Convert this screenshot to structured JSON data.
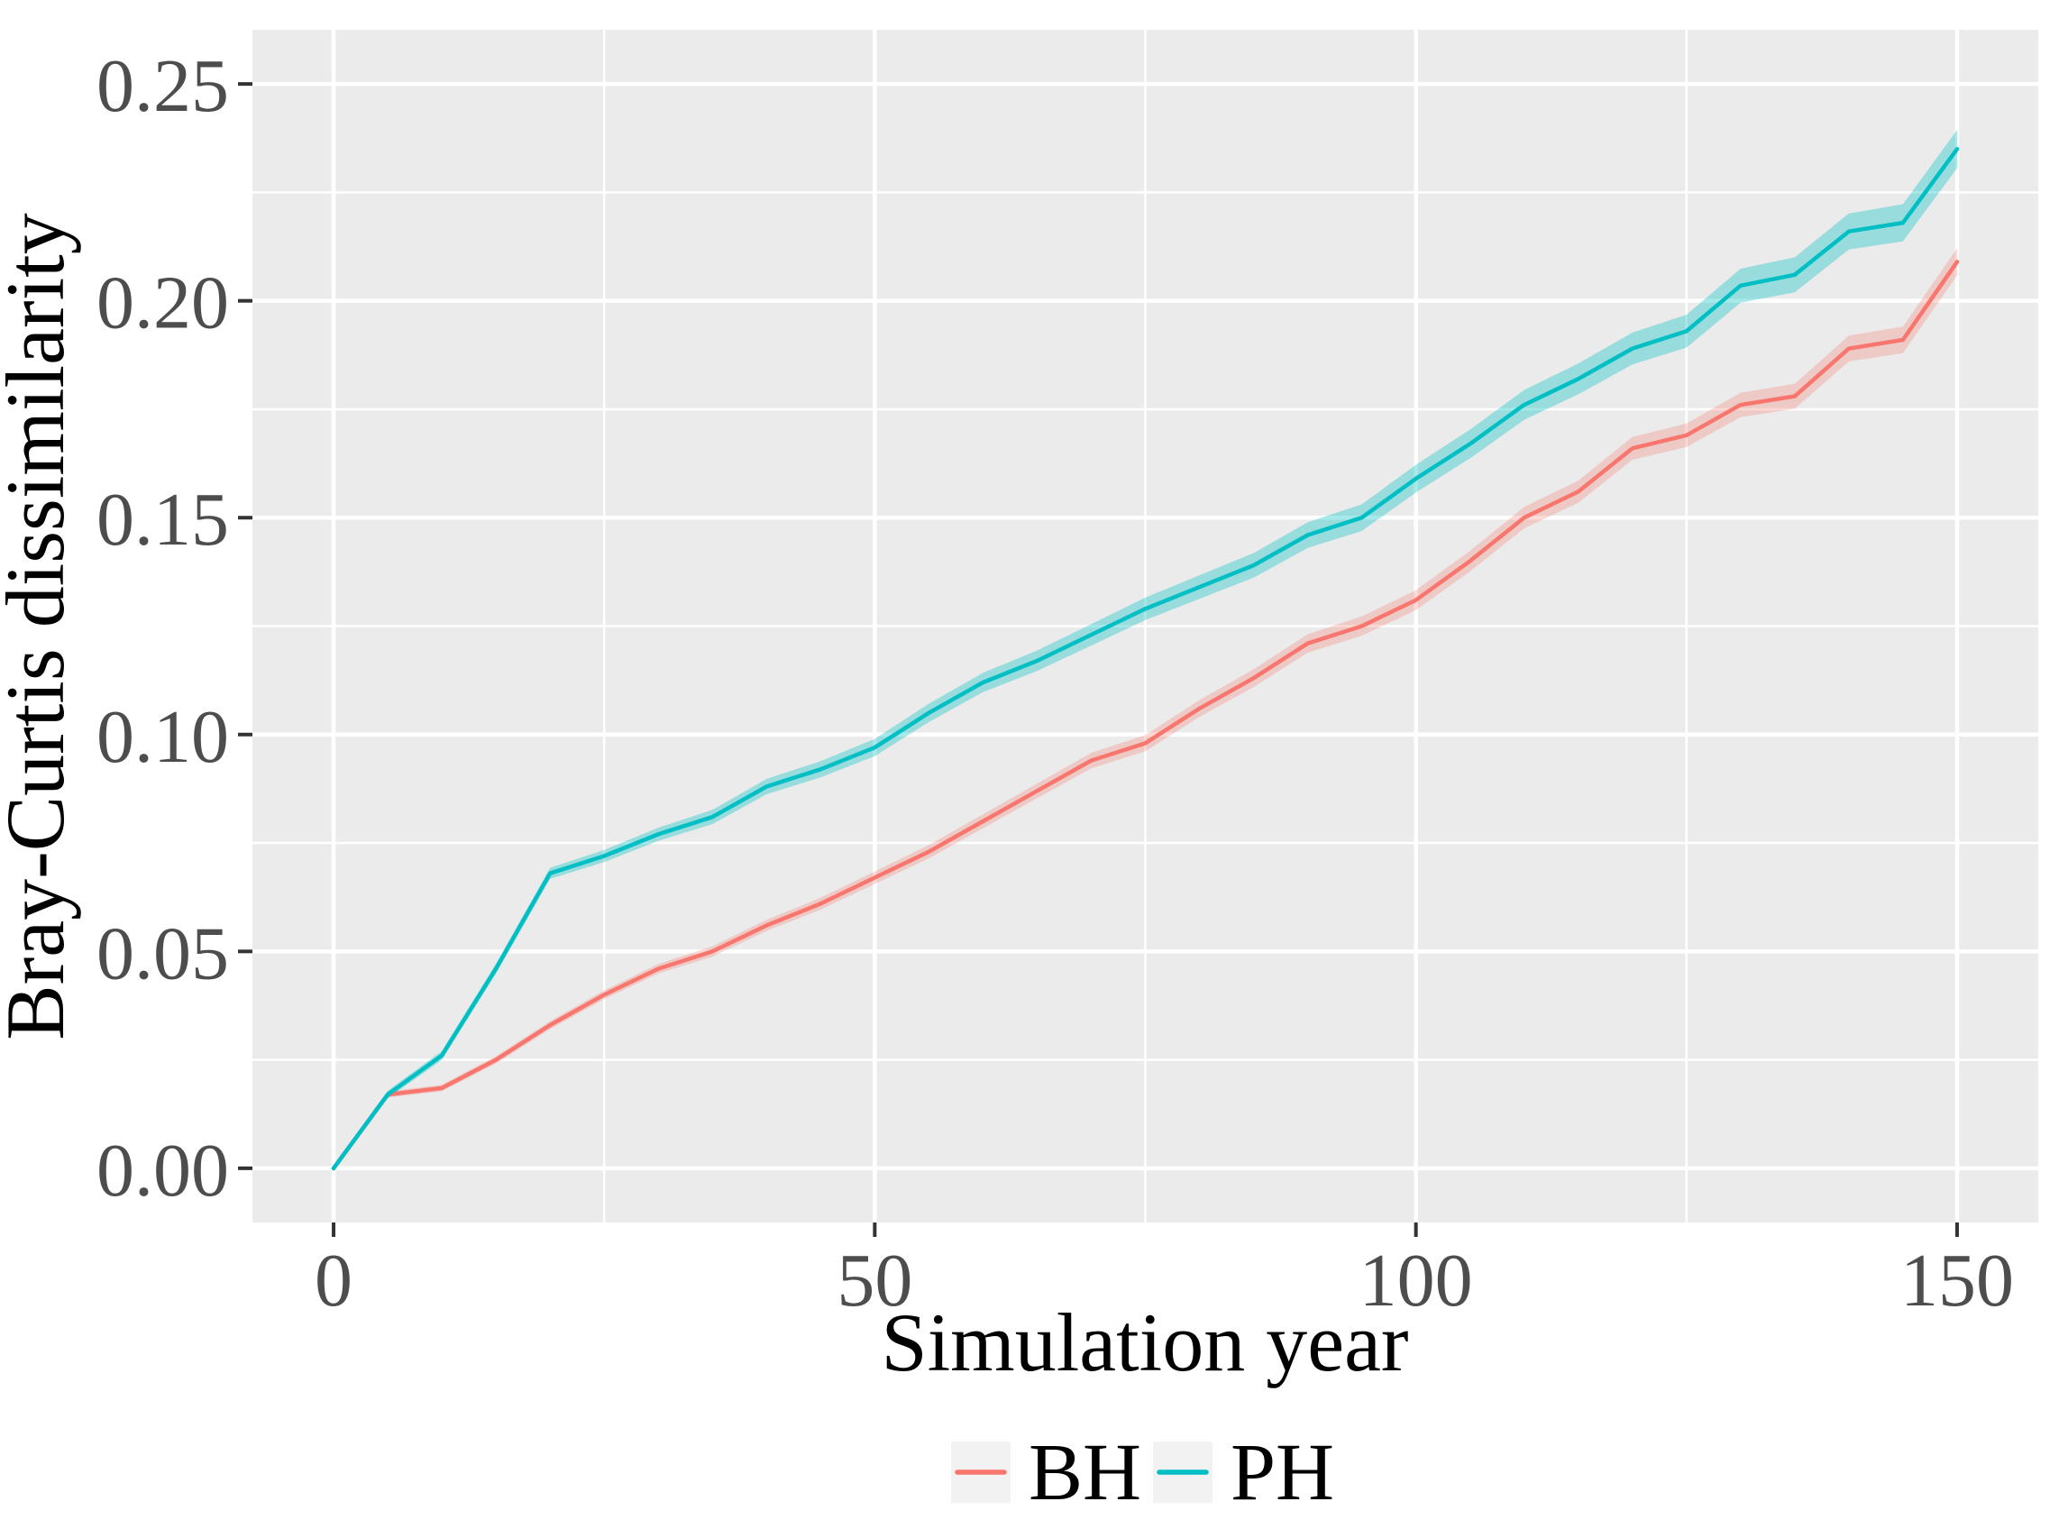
{
  "chart_data": {
    "type": "line",
    "title": "",
    "xlabel": "Simulation year",
    "ylabel": "Bray-Curtis dissimilarity",
    "legend_position": "bottom",
    "grid": true,
    "panel_bg": "#EBEBEB",
    "grid_color": "#FFFFFF",
    "legend_key_bg": "#F2F2F2",
    "tick_label_color": "#4D4D4D",
    "tick_mark_color": "#333333",
    "axis_title_color": "#000000",
    "xlim": [
      -7.5,
      157.5
    ],
    "ylim": [
      -0.0125,
      0.2625
    ],
    "xticks": [
      {
        "label": "0",
        "value": 0
      },
      {
        "label": "50",
        "value": 50
      },
      {
        "label": "100",
        "value": 100
      },
      {
        "label": "150",
        "value": 150
      }
    ],
    "yticks": [
      {
        "label": "0.00",
        "value": 0.0
      },
      {
        "label": "0.05",
        "value": 0.05
      },
      {
        "label": "0.10",
        "value": 0.1
      },
      {
        "label": "0.15",
        "value": 0.15
      },
      {
        "label": "0.20",
        "value": 0.2
      },
      {
        "label": "0.25",
        "value": 0.25
      }
    ],
    "x_minor": [
      25,
      75,
      125
    ],
    "y_minor": [
      0.025,
      0.075,
      0.125,
      0.175,
      0.225
    ],
    "x": [
      0,
      5,
      10,
      15,
      20,
      25,
      30,
      35,
      40,
      45,
      50,
      55,
      60,
      65,
      70,
      75,
      80,
      85,
      90,
      95,
      100,
      105,
      110,
      115,
      120,
      125,
      130,
      135,
      140,
      145,
      150
    ],
    "series": [
      {
        "name": "BH",
        "color": "#F8766D",
        "ribbon_alpha": 0.28,
        "ribbon_halfwidth_base": 0.0006,
        "ribbon_halfwidth_per_year": 1.7e-05,
        "values": [
          0.0,
          0.017,
          0.0185,
          0.025,
          0.033,
          0.04,
          0.046,
          0.05,
          0.056,
          0.061,
          0.067,
          0.073,
          0.08,
          0.087,
          0.094,
          0.098,
          0.106,
          0.113,
          0.121,
          0.125,
          0.131,
          0.14,
          0.15,
          0.156,
          0.166,
          0.169,
          0.176,
          0.178,
          0.189,
          0.191,
          0.209
        ]
      },
      {
        "name": "PH",
        "color": "#00BFC4",
        "ribbon_alpha": 0.35,
        "ribbon_halfwidth_base": 0.0008,
        "ribbon_halfwidth_per_year": 2.4e-05,
        "values": [
          0.0,
          0.017,
          0.026,
          0.046,
          0.068,
          0.072,
          0.077,
          0.081,
          0.088,
          0.092,
          0.097,
          0.105,
          0.112,
          0.117,
          0.123,
          0.129,
          0.134,
          0.139,
          0.146,
          0.15,
          0.159,
          0.167,
          0.176,
          0.182,
          0.189,
          0.193,
          0.2035,
          0.206,
          0.216,
          0.218,
          0.235
        ]
      }
    ]
  }
}
